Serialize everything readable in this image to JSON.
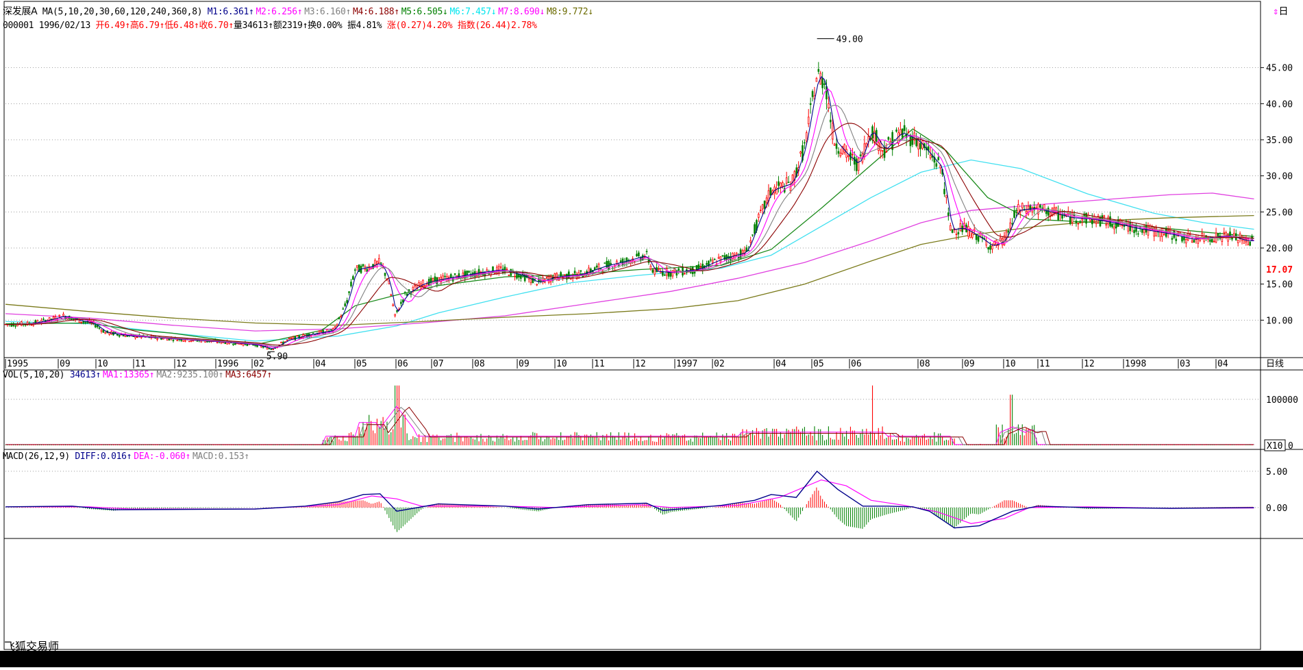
{
  "chart_data": [
    {
      "type": "line",
      "title": "深发展A",
      "panel": "price",
      "indicator_label": "MA(5,10,20,30,60,120,240,360,8)",
      "ma_labels": [
        {
          "text": "M1:6.361",
          "arrow": "↑",
          "color": "#00008b"
        },
        {
          "text": "M2:6.256",
          "arrow": "↑",
          "color": "#ff00ff"
        },
        {
          "text": "M3:6.160",
          "arrow": "↑",
          "color": "#808080"
        },
        {
          "text": "M4:6.188",
          "arrow": "↑",
          "color": "#8b0000"
        },
        {
          "text": "M5:6.505",
          "arrow": "↓",
          "color": "#008000"
        },
        {
          "text": "M6:7.457",
          "arrow": "↓",
          "color": "#00e5ee"
        },
        {
          "text": "M7:8.690",
          "arrow": "↓",
          "color": "#ff00ff"
        },
        {
          "text": "M8:9.772",
          "arrow": "↓",
          "color": "#6b6b00"
        }
      ],
      "quote": {
        "code": "000001",
        "date": "1996/02/13",
        "open": "开6.49",
        "high": "高6.79",
        "low": "低6.48",
        "close": "收6.70",
        "volume": "量34613",
        "amount": "额2319",
        "turnover": "换0.00%",
        "amplitude": "振4.81%",
        "change": "涨(0.27)4.20%",
        "index": "指数(26.44)2.78%"
      },
      "ylim": [
        5.0,
        50.0
      ],
      "y_ticks": [
        "45.00",
        "40.00",
        "35.00",
        "30.00",
        "25.00",
        "20.00",
        "15.00",
        "10.00"
      ],
      "current_price_label": "17.07",
      "x_tick_labels": [
        "1995",
        "09",
        "10",
        "11",
        "12",
        "1996",
        "02",
        "04",
        "05",
        "06",
        "07",
        "08",
        "09",
        "10",
        "11",
        "12",
        "1997",
        "02",
        "04",
        "05",
        "06",
        "08",
        "09",
        "10",
        "11",
        "12",
        "1998",
        "03",
        "04"
      ],
      "period_label": "日线",
      "annotations": [
        {
          "text": "49.00",
          "kind": "max"
        },
        {
          "text": "5.90",
          "kind": "min"
        }
      ],
      "price_path": [
        [
          0,
          9.4
        ],
        [
          30,
          9.5
        ],
        [
          55,
          10.1
        ],
        [
          70,
          10.6
        ],
        [
          90,
          9.9
        ],
        [
          105,
          9.6
        ],
        [
          120,
          8.3
        ],
        [
          150,
          7.8
        ],
        [
          190,
          7.5
        ],
        [
          230,
          7.2
        ],
        [
          270,
          6.9
        ],
        [
          300,
          6.6
        ],
        [
          320,
          6.0
        ],
        [
          340,
          7.3
        ],
        [
          365,
          8.0
        ],
        [
          395,
          8.6
        ],
        [
          410,
          12.5
        ],
        [
          420,
          17.0
        ],
        [
          435,
          17.3
        ],
        [
          450,
          18.0
        ],
        [
          460,
          15.5
        ],
        [
          468,
          10.5
        ],
        [
          480,
          13.5
        ],
        [
          500,
          15.0
        ],
        [
          520,
          15.6
        ],
        [
          545,
          16.1
        ],
        [
          570,
          16.6
        ],
        [
          595,
          17.0
        ],
        [
          620,
          16.2
        ],
        [
          640,
          15.2
        ],
        [
          660,
          16.0
        ],
        [
          690,
          16.3
        ],
        [
          720,
          17.5
        ],
        [
          745,
          18.2
        ],
        [
          770,
          19.0
        ],
        [
          778,
          16.8
        ],
        [
          800,
          16.6
        ],
        [
          830,
          17.0
        ],
        [
          860,
          18.5
        ],
        [
          890,
          19.4
        ],
        [
          905,
          24.0
        ],
        [
          920,
          28.0
        ],
        [
          945,
          29.0
        ],
        [
          960,
          34.0
        ],
        [
          975,
          44.0
        ],
        [
          985,
          43.0
        ],
        [
          995,
          35.0
        ],
        [
          1010,
          33.0
        ],
        [
          1025,
          31.5
        ],
        [
          1040,
          36.5
        ],
        [
          1055,
          33.5
        ],
        [
          1075,
          36.0
        ],
        [
          1095,
          35.0
        ],
        [
          1110,
          33.0
        ],
        [
          1125,
          31.0
        ],
        [
          1135,
          22.5
        ],
        [
          1150,
          22.8
        ],
        [
          1170,
          21.5
        ],
        [
          1185,
          20.2
        ],
        [
          1200,
          21.0
        ],
        [
          1215,
          25.2
        ],
        [
          1235,
          25.5
        ],
        [
          1255,
          25.0
        ],
        [
          1280,
          24.2
        ],
        [
          1305,
          24.0
        ],
        [
          1330,
          23.5
        ],
        [
          1355,
          22.8
        ],
        [
          1380,
          22.3
        ],
        [
          1405,
          21.8
        ],
        [
          1425,
          21.2
        ],
        [
          1450,
          21.5
        ],
        [
          1470,
          21.7
        ],
        [
          1490,
          21.0
        ],
        [
          1500,
          21.0
        ]
      ],
      "ma_curves": {
        "M6": [
          [
            0,
            9.8
          ],
          [
            100,
            9.5
          ],
          [
            200,
            8.2
          ],
          [
            300,
            7.1
          ],
          [
            400,
            7.8
          ],
          [
            470,
            9.2
          ],
          [
            520,
            11.0
          ],
          [
            600,
            13.2
          ],
          [
            680,
            15.2
          ],
          [
            760,
            16.2
          ],
          [
            860,
            17.2
          ],
          [
            920,
            19.0
          ],
          [
            980,
            23.0
          ],
          [
            1040,
            27.0
          ],
          [
            1100,
            30.5
          ],
          [
            1160,
            32.2
          ],
          [
            1220,
            31.0
          ],
          [
            1300,
            27.5
          ],
          [
            1380,
            24.8
          ],
          [
            1440,
            23.5
          ],
          [
            1500,
            22.6
          ]
        ],
        "M7": [
          [
            0,
            10.9
          ],
          [
            100,
            10.3
          ],
          [
            200,
            9.3
          ],
          [
            300,
            8.5
          ],
          [
            400,
            8.8
          ],
          [
            500,
            9.6
          ],
          [
            600,
            10.6
          ],
          [
            700,
            12.3
          ],
          [
            800,
            14.0
          ],
          [
            880,
            15.8
          ],
          [
            960,
            18.0
          ],
          [
            1040,
            21.0
          ],
          [
            1100,
            23.5
          ],
          [
            1160,
            25.2
          ],
          [
            1240,
            26.0
          ],
          [
            1320,
            26.7
          ],
          [
            1400,
            27.4
          ],
          [
            1450,
            27.6
          ],
          [
            1500,
            26.8
          ]
        ],
        "M8": [
          [
            0,
            12.2
          ],
          [
            100,
            11.2
          ],
          [
            200,
            10.3
          ],
          [
            300,
            9.6
          ],
          [
            400,
            9.3
          ],
          [
            500,
            9.8
          ],
          [
            600,
            10.4
          ],
          [
            700,
            10.9
          ],
          [
            800,
            11.6
          ],
          [
            880,
            12.7
          ],
          [
            960,
            15.0
          ],
          [
            1040,
            18.2
          ],
          [
            1100,
            20.5
          ],
          [
            1160,
            21.8
          ],
          [
            1240,
            23.0
          ],
          [
            1320,
            23.8
          ],
          [
            1400,
            24.2
          ],
          [
            1500,
            24.5
          ]
        ],
        "M5": [
          [
            0,
            9.5
          ],
          [
            100,
            9.6
          ],
          [
            150,
            8.7
          ],
          [
            200,
            8.2
          ],
          [
            300,
            6.6
          ],
          [
            380,
            8.6
          ],
          [
            420,
            12.0
          ],
          [
            470,
            13.5
          ],
          [
            520,
            14.8
          ],
          [
            600,
            16.0
          ],
          [
            680,
            16.3
          ],
          [
            760,
            17.0
          ],
          [
            860,
            17.6
          ],
          [
            920,
            19.8
          ],
          [
            980,
            25.5
          ],
          [
            1040,
            31.5
          ],
          [
            1090,
            36.5
          ],
          [
            1130,
            33.5
          ],
          [
            1180,
            27.0
          ],
          [
            1230,
            24.0
          ],
          [
            1300,
            23.6
          ],
          [
            1380,
            22.9
          ],
          [
            1440,
            22.2
          ],
          [
            1500,
            21.6
          ]
        ]
      }
    },
    {
      "type": "bar",
      "panel": "volume",
      "indicator_label": "VOL(5,10,20)",
      "labels": [
        {
          "text": "34613",
          "arrow": "↑",
          "color": "#00008b"
        },
        {
          "text": "MA1:13365",
          "arrow": "↑",
          "color": "#ff00ff"
        },
        {
          "text": "MA2:9235.100",
          "arrow": "↑",
          "color": "#808080"
        },
        {
          "text": "MA3:6457",
          "arrow": "↑",
          "color": "#8b0000"
        }
      ],
      "y_ticks": [
        "100000",
        "0"
      ],
      "unit_label": "X10",
      "ylim": [
        0,
        140000
      ]
    },
    {
      "type": "bar",
      "panel": "macd",
      "indicator_label": "MACD(26,12,9)",
      "labels": [
        {
          "text": "DIFF:0.016",
          "arrow": "↑",
          "color": "#00008b"
        },
        {
          "text": "DEA:-0.060",
          "arrow": "↑",
          "color": "#ff00ff"
        },
        {
          "text": "MACD:0.153",
          "arrow": "↑",
          "color": "#808080"
        }
      ],
      "y_ticks": [
        "5.00",
        "0.00"
      ],
      "ylim": [
        -3.5,
        6.5
      ]
    }
  ],
  "footer": {
    "watermark": "飞狐交易师"
  },
  "colors": {
    "up": "#ff0000",
    "down": "#008000",
    "grid": "#9c9c9c",
    "axis": "#000000"
  }
}
